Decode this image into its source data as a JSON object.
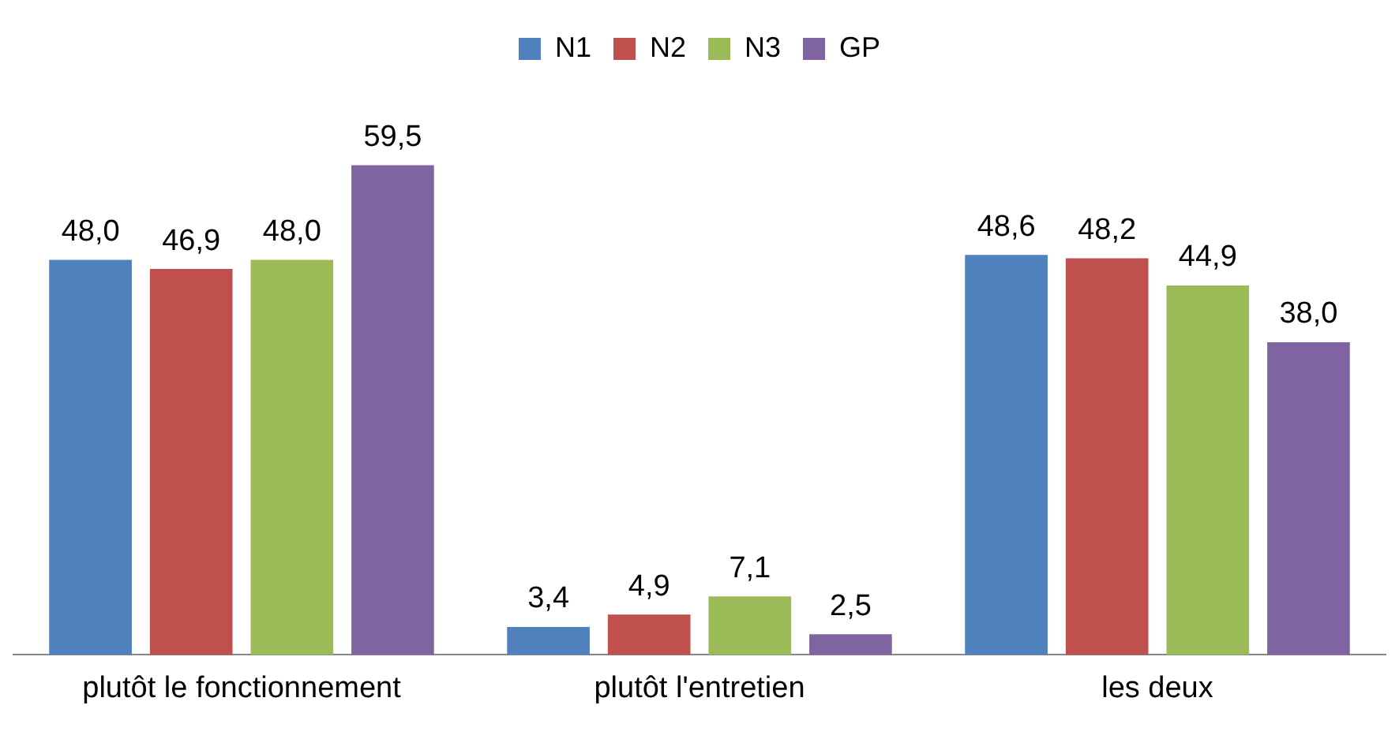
{
  "chart_data": {
    "type": "bar",
    "categories": [
      "plutôt le fonctionnement",
      "plutôt l'entretien",
      "les deux"
    ],
    "series": [
      {
        "name": "N1",
        "color": "#4f81bd",
        "values": [
          48.0,
          3.4,
          48.6
        ],
        "value_labels": [
          "48,0",
          "3,4",
          "48,6"
        ]
      },
      {
        "name": "N2",
        "color": "#c0504d",
        "values": [
          46.9,
          4.9,
          48.2
        ],
        "value_labels": [
          "46,9",
          "4,9",
          "48,2"
        ]
      },
      {
        "name": "N3",
        "color": "#9bbb59",
        "values": [
          48.0,
          7.1,
          44.9
        ],
        "value_labels": [
          "48,0",
          "7,1",
          "44,9"
        ]
      },
      {
        "name": "GP",
        "color": "#8064a2",
        "values": [
          59.5,
          2.5,
          38.0
        ],
        "value_labels": [
          "59,5",
          "2,5",
          "38,0"
        ]
      }
    ],
    "legend": "top",
    "grid": false
  }
}
